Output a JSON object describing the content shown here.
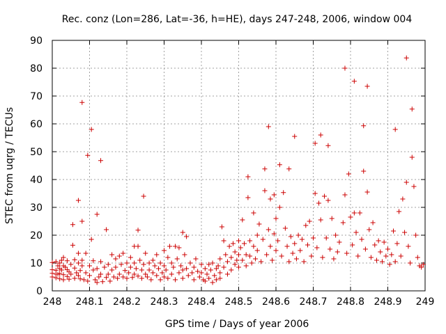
{
  "chart_data": {
    "type": "scatter",
    "title": "Rec. conz (Lon=286, Lat=-36, h=HE), days 247-248, 2006, window 004",
    "xlabel": "GPS time / Days of year 2006",
    "ylabel": "STEC from uqrg / TECUs",
    "xlim": [
      248,
      249
    ],
    "ylim": [
      0,
      90
    ],
    "x_ticks": [
      248,
      248.1,
      248.2,
      248.3,
      248.4,
      248.5,
      248.6,
      248.7,
      248.8,
      248.9,
      249
    ],
    "x_tick_labels": [
      "248",
      "248.1",
      "248.2",
      "248.3",
      "248.4",
      "248.5",
      "248.6",
      "248.7",
      "248.8",
      "248.9",
      "249"
    ],
    "y_ticks": [
      0,
      10,
      20,
      30,
      40,
      50,
      60,
      70,
      80,
      90
    ],
    "y_tick_labels": [
      "0",
      "10",
      "20",
      "30",
      "40",
      "50",
      "60",
      "70",
      "80",
      "90"
    ],
    "grid": true,
    "marker": "+",
    "point_color": "#cc0000",
    "points": [
      [
        248.0,
        10.2
      ],
      [
        248.0,
        7.6
      ],
      [
        248.0,
        6.3
      ],
      [
        248.0,
        5.0
      ],
      [
        248.01,
        10.5
      ],
      [
        248.01,
        7.4
      ],
      [
        248.01,
        6.0
      ],
      [
        248.01,
        4.7
      ],
      [
        248.015,
        9.0
      ],
      [
        248.015,
        6.0
      ],
      [
        248.02,
        10.0
      ],
      [
        248.02,
        8.0
      ],
      [
        248.02,
        6.2
      ],
      [
        248.02,
        4.3
      ],
      [
        248.025,
        11.0
      ],
      [
        248.025,
        7.5
      ],
      [
        248.03,
        12.0
      ],
      [
        248.03,
        9.0
      ],
      [
        248.03,
        5.8
      ],
      [
        248.03,
        4.0
      ],
      [
        248.035,
        8.5
      ],
      [
        248.04,
        10.8
      ],
      [
        248.04,
        7.6
      ],
      [
        248.04,
        5.2
      ],
      [
        248.045,
        6.8
      ],
      [
        248.045,
        4.2
      ],
      [
        248.05,
        9.5
      ],
      [
        248.05,
        6.0
      ],
      [
        248.055,
        23.8
      ],
      [
        248.055,
        16.4
      ],
      [
        248.06,
        11.2
      ],
      [
        248.06,
        8.2
      ],
      [
        248.06,
        4.5
      ],
      [
        248.065,
        6.5
      ],
      [
        248.07,
        13.5
      ],
      [
        248.07,
        10.0
      ],
      [
        248.07,
        5.5
      ],
      [
        248.07,
        32.5
      ],
      [
        248.075,
        7.3
      ],
      [
        248.075,
        4.3
      ],
      [
        248.08,
        25.0
      ],
      [
        248.08,
        67.7
      ],
      [
        248.08,
        11.0
      ],
      [
        248.08,
        9.0
      ],
      [
        248.085,
        4.0
      ],
      [
        248.09,
        13.5
      ],
      [
        248.09,
        6.5
      ],
      [
        248.095,
        48.7
      ],
      [
        248.095,
        3.5
      ],
      [
        248.1,
        9.0
      ],
      [
        248.1,
        5.5
      ],
      [
        248.105,
        58.0
      ],
      [
        248.105,
        18.5
      ],
      [
        248.11,
        10.8
      ],
      [
        248.11,
        7.5
      ],
      [
        248.115,
        4.0
      ],
      [
        248.12,
        27.5
      ],
      [
        248.12,
        8.0
      ],
      [
        248.12,
        3.0
      ],
      [
        248.125,
        5.0
      ],
      [
        248.13,
        46.8
      ],
      [
        248.13,
        10.5
      ],
      [
        248.13,
        6.0
      ],
      [
        248.135,
        3.3
      ],
      [
        248.14,
        8.5
      ],
      [
        248.145,
        22.0
      ],
      [
        248.145,
        4.8
      ],
      [
        248.15,
        9.5
      ],
      [
        248.15,
        6.0
      ],
      [
        248.155,
        3.5
      ],
      [
        248.16,
        13.0
      ],
      [
        248.16,
        7.5
      ],
      [
        248.165,
        5.0
      ],
      [
        248.17,
        11.5
      ],
      [
        248.17,
        8.5
      ],
      [
        248.175,
        4.5
      ],
      [
        248.18,
        12.5
      ],
      [
        248.18,
        6.0
      ],
      [
        248.185,
        9.5
      ],
      [
        248.19,
        13.5
      ],
      [
        248.19,
        5.0
      ],
      [
        248.195,
        7.3
      ],
      [
        248.2,
        10.0
      ],
      [
        248.2,
        4.5
      ],
      [
        248.205,
        6.5
      ],
      [
        248.21,
        12.0
      ],
      [
        248.21,
        8.5
      ],
      [
        248.215,
        4.8
      ],
      [
        248.22,
        16.0
      ],
      [
        248.22,
        10.0
      ],
      [
        248.22,
        6.0
      ],
      [
        248.225,
        8.0
      ],
      [
        248.23,
        21.8
      ],
      [
        248.23,
        16.0
      ],
      [
        248.23,
        5.3
      ],
      [
        248.235,
        11.0
      ],
      [
        248.24,
        7.5
      ],
      [
        248.24,
        4.5
      ],
      [
        248.245,
        34.0
      ],
      [
        248.245,
        9.5
      ],
      [
        248.25,
        6.0
      ],
      [
        248.25,
        13.5
      ],
      [
        248.255,
        5.0
      ],
      [
        248.26,
        10.0
      ],
      [
        248.26,
        7.5
      ],
      [
        248.265,
        4.0
      ],
      [
        248.27,
        11.0
      ],
      [
        248.27,
        6.5
      ],
      [
        248.275,
        9.0
      ],
      [
        248.28,
        13.0
      ],
      [
        248.28,
        5.5
      ],
      [
        248.285,
        8.0
      ],
      [
        248.29,
        10.0
      ],
      [
        248.29,
        4.0
      ],
      [
        248.295,
        6.5
      ],
      [
        248.3,
        14.5
      ],
      [
        248.3,
        9.0
      ],
      [
        248.3,
        5.0
      ],
      [
        248.305,
        7.5
      ],
      [
        248.31,
        12.0
      ],
      [
        248.31,
        4.5
      ],
      [
        248.315,
        16.0
      ],
      [
        248.32,
        10.0
      ],
      [
        248.32,
        6.0
      ],
      [
        248.325,
        8.5
      ],
      [
        248.33,
        16.0
      ],
      [
        248.33,
        4.0
      ],
      [
        248.335,
        11.5
      ],
      [
        248.34,
        6.5
      ],
      [
        248.34,
        15.5
      ],
      [
        248.345,
        9.0
      ],
      [
        248.35,
        21.0
      ],
      [
        248.35,
        7.5
      ],
      [
        248.35,
        4.5
      ],
      [
        248.355,
        13.0
      ],
      [
        248.36,
        19.5
      ],
      [
        248.36,
        8.0
      ],
      [
        248.365,
        5.5
      ],
      [
        248.37,
        10.0
      ],
      [
        248.375,
        6.5
      ],
      [
        248.38,
        8.5
      ],
      [
        248.38,
        4.0
      ],
      [
        248.385,
        11.5
      ],
      [
        248.39,
        7.0
      ],
      [
        248.395,
        5.0
      ],
      [
        248.4,
        9.5
      ],
      [
        248.4,
        6.5
      ],
      [
        248.405,
        4.0
      ],
      [
        248.41,
        8.0
      ],
      [
        248.41,
        3.5
      ],
      [
        248.415,
        6.0
      ],
      [
        248.42,
        9.5
      ],
      [
        248.42,
        4.5
      ],
      [
        248.425,
        7.5
      ],
      [
        248.43,
        3.0
      ],
      [
        248.43,
        10.0
      ],
      [
        248.435,
        5.5
      ],
      [
        248.44,
        8.0
      ],
      [
        248.44,
        4.0
      ],
      [
        248.445,
        9.0
      ],
      [
        248.45,
        11.5
      ],
      [
        248.45,
        6.5
      ],
      [
        248.45,
        4.5
      ],
      [
        248.455,
        23.0
      ],
      [
        248.46,
        18.0
      ],
      [
        248.46,
        8.5
      ],
      [
        248.465,
        13.0
      ],
      [
        248.47,
        10.5
      ],
      [
        248.47,
        6.0
      ],
      [
        248.475,
        16.0
      ],
      [
        248.48,
        12.0
      ],
      [
        248.48,
        7.5
      ],
      [
        248.485,
        17.0
      ],
      [
        248.49,
        14.0
      ],
      [
        248.49,
        9.5
      ],
      [
        248.495,
        11.0
      ],
      [
        248.5,
        18.0
      ],
      [
        248.5,
        13.0
      ],
      [
        248.5,
        8.5
      ],
      [
        248.505,
        15.5
      ],
      [
        248.51,
        25.5
      ],
      [
        248.51,
        11.0
      ],
      [
        248.515,
        17.0
      ],
      [
        248.52,
        13.0
      ],
      [
        248.52,
        9.0
      ],
      [
        248.525,
        41.0
      ],
      [
        248.525,
        33.5
      ],
      [
        248.53,
        18.0
      ],
      [
        248.53,
        12.5
      ],
      [
        248.535,
        10.0
      ],
      [
        248.54,
        16.0
      ],
      [
        248.54,
        28.0
      ],
      [
        248.545,
        11.5
      ],
      [
        248.55,
        20.0
      ],
      [
        248.55,
        14.5
      ],
      [
        248.555,
        24.0
      ],
      [
        248.56,
        10.5
      ],
      [
        248.565,
        18.5
      ],
      [
        248.57,
        43.8
      ],
      [
        248.57,
        36.0
      ],
      [
        248.575,
        13.0
      ],
      [
        248.58,
        22.0
      ],
      [
        248.58,
        59.0
      ],
      [
        248.585,
        33.0
      ],
      [
        248.585,
        16.0
      ],
      [
        248.59,
        11.0
      ],
      [
        248.595,
        20.5
      ],
      [
        248.595,
        34.5
      ],
      [
        248.6,
        14.5
      ],
      [
        248.6,
        26.0
      ],
      [
        248.605,
        18.0
      ],
      [
        248.61,
        45.3
      ],
      [
        248.61,
        30.0
      ],
      [
        248.615,
        12.5
      ],
      [
        248.62,
        35.3
      ],
      [
        248.625,
        22.5
      ],
      [
        248.63,
        16.0
      ],
      [
        248.635,
        43.8
      ],
      [
        248.635,
        10.5
      ],
      [
        248.64,
        19.5
      ],
      [
        248.645,
        13.5
      ],
      [
        248.65,
        55.5
      ],
      [
        248.65,
        17.0
      ],
      [
        248.655,
        11.5
      ],
      [
        248.66,
        20.0
      ],
      [
        248.665,
        14.5
      ],
      [
        248.67,
        18.5
      ],
      [
        248.675,
        10.5
      ],
      [
        248.68,
        23.5
      ],
      [
        248.685,
        16.5
      ],
      [
        248.69,
        25.0
      ],
      [
        248.695,
        12.5
      ],
      [
        248.7,
        19.0
      ],
      [
        248.705,
        35.0
      ],
      [
        248.705,
        53.0
      ],
      [
        248.71,
        15.5
      ],
      [
        248.715,
        31.5
      ],
      [
        248.72,
        56.0
      ],
      [
        248.72,
        25.5
      ],
      [
        248.725,
        12.0
      ],
      [
        248.73,
        34.0
      ],
      [
        248.735,
        19.0
      ],
      [
        248.74,
        52.2
      ],
      [
        248.74,
        32.5
      ],
      [
        248.745,
        15.0
      ],
      [
        248.75,
        26.0
      ],
      [
        248.755,
        11.5
      ],
      [
        248.76,
        20.0
      ],
      [
        248.765,
        14.0
      ],
      [
        248.77,
        17.5
      ],
      [
        248.78,
        24.5
      ],
      [
        248.785,
        80.0
      ],
      [
        248.785,
        34.5
      ],
      [
        248.79,
        13.5
      ],
      [
        248.795,
        42.0
      ],
      [
        248.8,
        26.5
      ],
      [
        248.805,
        16.5
      ],
      [
        248.81,
        75.3
      ],
      [
        248.81,
        28.0
      ],
      [
        248.815,
        21.0
      ],
      [
        248.82,
        12.5
      ],
      [
        248.825,
        28.0
      ],
      [
        248.83,
        18.5
      ],
      [
        248.835,
        43.0
      ],
      [
        248.835,
        59.3
      ],
      [
        248.84,
        15.0
      ],
      [
        248.845,
        35.5
      ],
      [
        248.845,
        73.5
      ],
      [
        248.85,
        22.0
      ],
      [
        248.855,
        12.0
      ],
      [
        248.86,
        24.5
      ],
      [
        248.865,
        16.5
      ],
      [
        248.87,
        11.0
      ],
      [
        248.875,
        18.0
      ],
      [
        248.88,
        14.0
      ],
      [
        248.885,
        10.5
      ],
      [
        248.89,
        17.5
      ],
      [
        248.895,
        12.5
      ],
      [
        248.9,
        15.0
      ],
      [
        248.905,
        9.5
      ],
      [
        248.91,
        13.0
      ],
      [
        248.915,
        21.5
      ],
      [
        248.92,
        58.0
      ],
      [
        248.92,
        10.5
      ],
      [
        248.925,
        17.0
      ],
      [
        248.93,
        28.5
      ],
      [
        248.935,
        12.5
      ],
      [
        248.94,
        33.0
      ],
      [
        248.945,
        21.0
      ],
      [
        248.95,
        83.7
      ],
      [
        248.95,
        39.0
      ],
      [
        248.955,
        16.0
      ],
      [
        248.96,
        10.0
      ],
      [
        248.965,
        65.3
      ],
      [
        248.965,
        48.0
      ],
      [
        248.97,
        37.5
      ],
      [
        248.975,
        20.0
      ],
      [
        248.98,
        12.0
      ],
      [
        248.985,
        9.0
      ],
      [
        248.99,
        8.5
      ],
      [
        248.995,
        9.5
      ]
    ]
  }
}
